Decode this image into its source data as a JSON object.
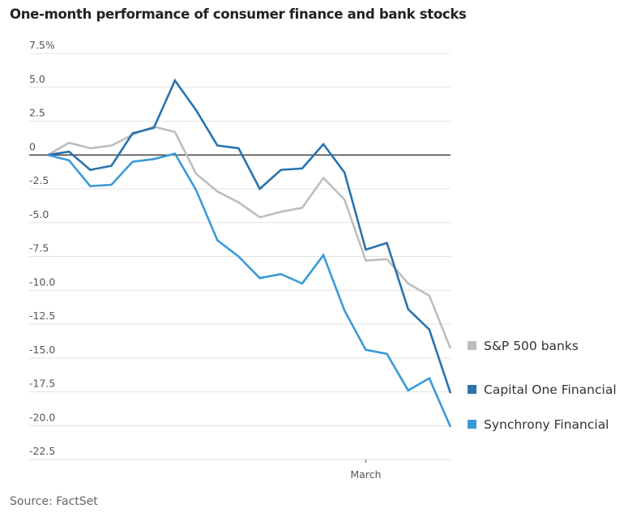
{
  "chart_data": {
    "type": "line",
    "title": "One-month performance of consumer finance and bank stocks",
    "source": "Source: FactSet",
    "xlabel": "",
    "ylabel": "",
    "ylim": [
      -22.5,
      7.5
    ],
    "y_ticks": [
      7.5,
      5.0,
      2.5,
      0,
      -2.5,
      -5.0,
      -7.5,
      -10.0,
      -12.5,
      -15.0,
      -17.5,
      -20.0,
      -22.5
    ],
    "y_tick_labels": [
      "7.5%",
      "5.0",
      "2.5",
      "0",
      "-2.5",
      "-5.0",
      "-7.5",
      "-10.0",
      "-12.5",
      "-15.0",
      "-17.5",
      "-20.0",
      "-22.5"
    ],
    "x": [
      1,
      2,
      3,
      4,
      5,
      6,
      7,
      8,
      9,
      10,
      11,
      12,
      13,
      14,
      15,
      16,
      17,
      18,
      19,
      20
    ],
    "x_ticks": [
      {
        "index": 15,
        "label": "March"
      }
    ],
    "grid": true,
    "legend_position": "right",
    "series": [
      {
        "name": "S&P 500 banks",
        "color": "#bdbdbd",
        "values": [
          0,
          0.9,
          0.5,
          0.7,
          1.5,
          2.1,
          1.7,
          -1.4,
          -2.7,
          -3.5,
          -4.6,
          -4.2,
          -3.9,
          -1.7,
          -3.3,
          -7.8,
          -7.7,
          -9.5,
          -10.4,
          -14.3
        ]
      },
      {
        "name": "Capital One Financial",
        "color": "#2a73ad",
        "values": [
          0,
          0.25,
          -1.1,
          -0.8,
          1.6,
          2.0,
          5.5,
          3.3,
          0.7,
          0.5,
          -2.5,
          -1.1,
          -1.0,
          0.8,
          -1.3,
          -7.0,
          -6.5,
          -11.4,
          -12.9,
          -17.6
        ]
      },
      {
        "name": "Synchrony Financial",
        "color": "#3a9ad9",
        "values": [
          0,
          -0.4,
          -2.3,
          -2.2,
          -0.5,
          -0.3,
          0.1,
          -2.6,
          -6.3,
          -7.5,
          -9.1,
          -8.8,
          -9.5,
          -7.4,
          -11.5,
          -14.4,
          -14.7,
          -17.4,
          -16.5,
          -20.1
        ]
      }
    ]
  }
}
